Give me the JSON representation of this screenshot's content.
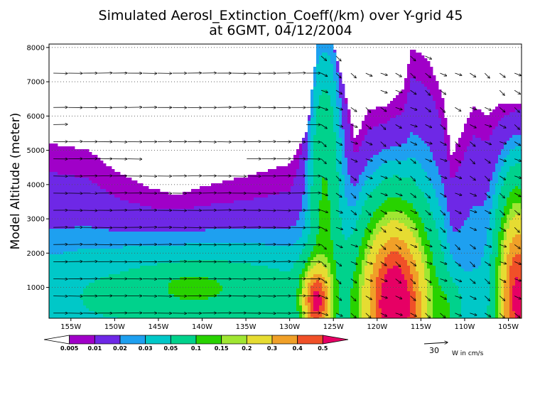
{
  "chart_data": {
    "type": "heatmap",
    "title_line1": "Simulated Aerosl_Extinction_Coeff(/km) over Y-grid 45",
    "title_line2": "at 6GMT, 04/12/2004",
    "ylabel": "Model Altitude (meter)",
    "xlim": [
      -157.5,
      -103.5
    ],
    "ylim": [
      100,
      8100
    ],
    "x_ticks": [
      {
        "value": -155,
        "label": "155W"
      },
      {
        "value": -150,
        "label": "150W"
      },
      {
        "value": -145,
        "label": "145W"
      },
      {
        "value": -140,
        "label": "140W"
      },
      {
        "value": -135,
        "label": "135W"
      },
      {
        "value": -130,
        "label": "130W"
      },
      {
        "value": -125,
        "label": "125W"
      },
      {
        "value": -120,
        "label": "120W"
      },
      {
        "value": -115,
        "label": "115W"
      },
      {
        "value": -110,
        "label": "110W"
      },
      {
        "value": -105,
        "label": "105W"
      }
    ],
    "y_ticks": [
      {
        "value": 1000,
        "label": "1000"
      },
      {
        "value": 2000,
        "label": "2000"
      },
      {
        "value": 3000,
        "label": "3000"
      },
      {
        "value": 4000,
        "label": "4000"
      },
      {
        "value": 5000,
        "label": "5000"
      },
      {
        "value": 6000,
        "label": "6000"
      },
      {
        "value": 7000,
        "label": "7000"
      },
      {
        "value": 8000,
        "label": "8000"
      }
    ],
    "colorbar": {
      "levels": [
        "0.005",
        "0.01",
        "0.02",
        "0.03",
        "0.05",
        "0.1",
        "0.15",
        "0.2",
        "0.3",
        "0.4",
        "0.5"
      ],
      "colors": [
        "#ffffff",
        "#a000c8",
        "#6e28e6",
        "#1ea0f0",
        "#00c8c8",
        "#00d28c",
        "#28d200",
        "#a0e632",
        "#e6dc32",
        "#f0a028",
        "#f05028",
        "#e60064"
      ]
    },
    "vector_legend": {
      "value": "30",
      "units": "W in cm/s"
    }
  }
}
